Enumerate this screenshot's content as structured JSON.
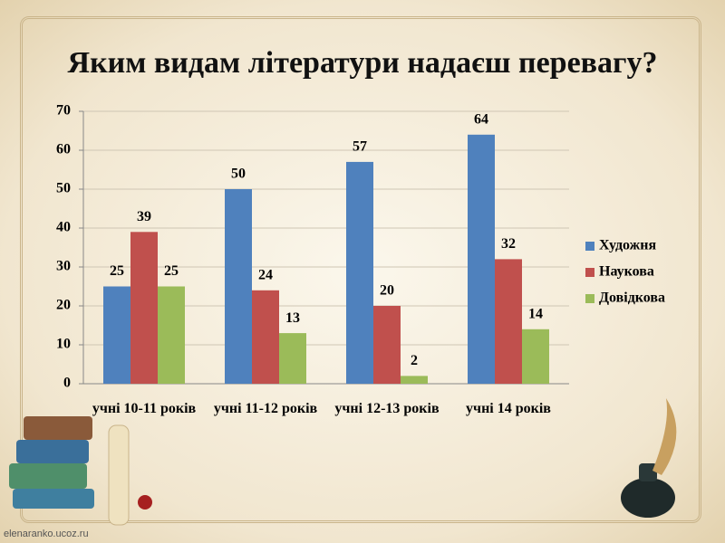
{
  "chart_data": {
    "type": "bar",
    "title": "Яким видам літератури надаєш перевагу?",
    "categories": [
      "учні 10-11 років",
      "учні 11-12 років",
      "учні 12-13 років",
      "учні 14 років"
    ],
    "series": [
      {
        "name": "Художня",
        "color": "#4f81bd",
        "values": [
          25,
          50,
          57,
          64
        ]
      },
      {
        "name": "Наукова",
        "color": "#c0504d",
        "values": [
          39,
          24,
          20,
          32
        ]
      },
      {
        "name": "Довідкова",
        "color": "#9bbb59",
        "values": [
          25,
          13,
          2,
          14
        ]
      }
    ],
    "ylim": [
      0,
      70
    ],
    "yticks": [
      0,
      10,
      20,
      30,
      40,
      50,
      60,
      70
    ],
    "grid": true,
    "legend": "right"
  },
  "watermark": "elenaranko.ucoz.ru"
}
